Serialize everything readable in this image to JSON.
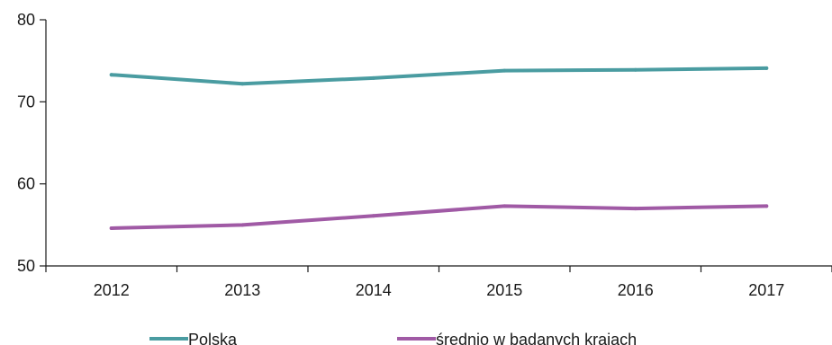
{
  "chart_data": {
    "type": "line",
    "title": "",
    "xlabel": "",
    "ylabel": "",
    "categories": [
      "2012",
      "2013",
      "2014",
      "2015",
      "2016",
      "2017"
    ],
    "ylim": [
      50,
      80
    ],
    "yticks": [
      "50",
      "60",
      "70",
      "80"
    ],
    "grid": false,
    "legend_position": "bottom",
    "series": [
      {
        "name": "Polska",
        "color": "#4a9ca1",
        "values": [
          73.3,
          72.2,
          72.9,
          73.8,
          73.9,
          74.1
        ]
      },
      {
        "name": "średnio w badanych krajach",
        "color": "#a05aa5",
        "values": [
          54.6,
          55.0,
          56.1,
          57.3,
          57.0,
          57.3
        ]
      }
    ]
  }
}
